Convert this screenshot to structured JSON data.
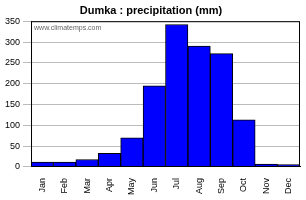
{
  "chart_data": {
    "type": "bar",
    "title": "Dumka : precipitation (mm)",
    "categories": [
      "Jan",
      "Feb",
      "Mar",
      "Apr",
      "May",
      "Jun",
      "Jul",
      "Aug",
      "Sep",
      "Oct",
      "Nov",
      "Dec"
    ],
    "values": [
      12,
      12,
      18,
      33,
      70,
      195,
      342,
      290,
      272,
      113,
      7,
      6
    ],
    "color": "#0000ff",
    "ylim": [
      0,
      350
    ],
    "yticks": [
      0,
      50,
      100,
      150,
      200,
      250,
      300,
      350
    ],
    "grid": true,
    "annotation": "www.climatemps.com"
  }
}
